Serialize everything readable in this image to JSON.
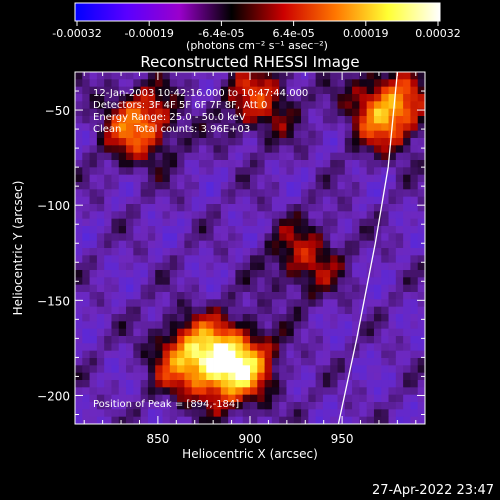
{
  "chart_data": {
    "type": "heatmap",
    "title": "Reconstructed RHESSI Image",
    "xlabel": "Heliocentric X (arcsec)",
    "ylabel": "Heliocentric Y (arcsec)",
    "xlim": [
      805,
      995
    ],
    "ylim": [
      -215,
      -30
    ],
    "x_ticks": [
      850,
      900,
      950
    ],
    "x_tick_labels": [
      "850",
      "900",
      "950"
    ],
    "y_ticks": [
      -50,
      -100,
      -150,
      -200
    ],
    "y_tick_labels": [
      "−50",
      "−100",
      "−150",
      "−200"
    ],
    "colorbar": {
      "range": [
        -0.00032,
        0.00032
      ],
      "tick_labels": [
        "-0.00032",
        "-0.00019",
        "-6.4e-05",
        "6.4e-05",
        "0.00019",
        "0.00032"
      ],
      "unit_label": "(photons cm⁻² s⁻¹ asec⁻²)",
      "colors": [
        "#0000ff",
        "#5a00ff",
        "#9a00cc",
        "#000000",
        "#cc0000",
        "#ff7700",
        "#ffff33",
        "#ffffff"
      ]
    },
    "annotations": {
      "time_range": "12-Jan-2003 10:42:16.000 to 10:47:44.000",
      "detectors": "Detectors: 3F 4F 5F 6F 7F 8F, Att 0",
      "energy": "Energy Range: 25.0 - 50.0 keV",
      "method_counts": "Clean    Total counts: 3.96E+03",
      "peak": "Position of Peak = [894,-184]"
    },
    "hot_spots": [
      {
        "x": 892,
        "y": -184,
        "intensity": 1.0
      },
      {
        "x": 868,
        "y": -180,
        "intensity": 0.75
      },
      {
        "x": 975,
        "y": -50,
        "intensity": 0.85
      },
      {
        "x": 840,
        "y": -58,
        "intensity": 0.7
      },
      {
        "x": 905,
        "y": -45,
        "intensity": 0.5
      },
      {
        "x": 930,
        "y": -128,
        "intensity": 0.45
      }
    ],
    "limb_curve": {
      "x": [
        980,
        975,
        968,
        958,
        948
      ],
      "y": [
        -30,
        -80,
        -120,
        -170,
        -215
      ]
    }
  },
  "footer": {
    "timestamp": "27-Apr-2022 23:47"
  }
}
